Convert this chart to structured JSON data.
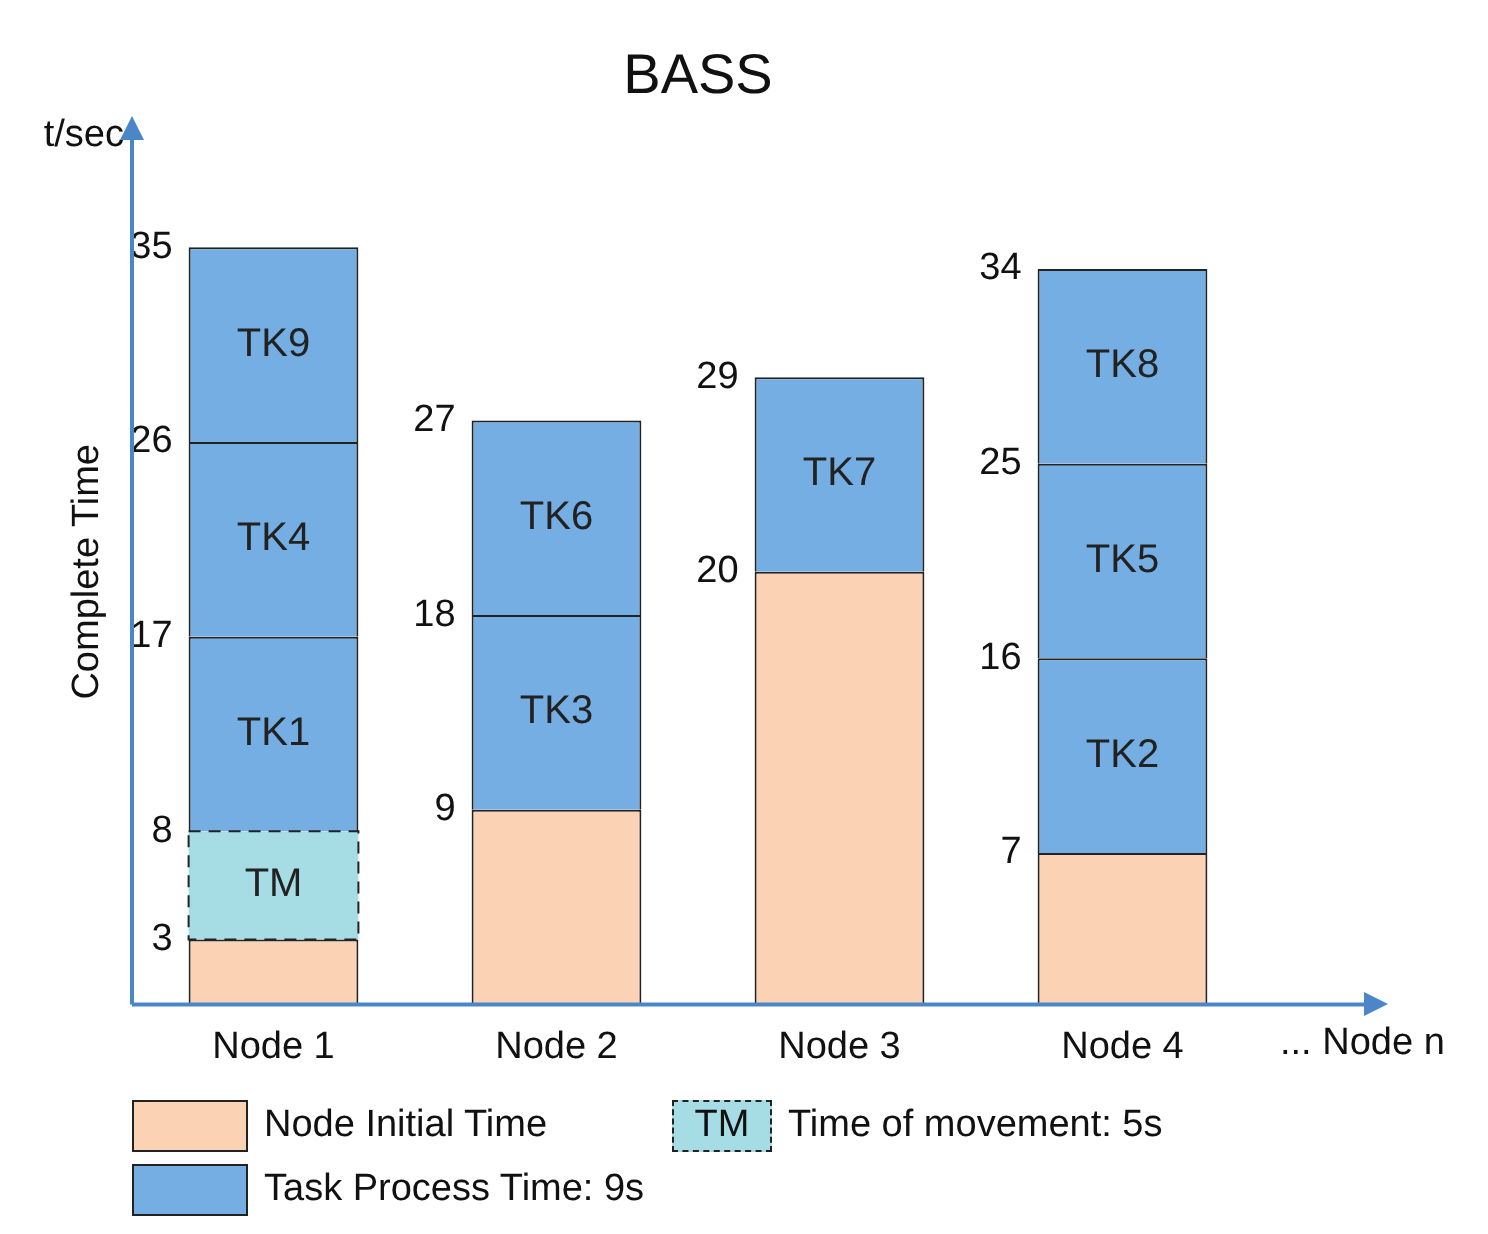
{
  "chart_data": {
    "type": "bar",
    "stacked": true,
    "title": "BASS",
    "ylabel": "Complete Time",
    "xlabel": "... Node n",
    "categories": [
      "Node 1",
      "Node 2",
      "Node 3",
      "Node 4"
    ],
    "ylim": [
      0,
      40
    ],
    "legend": "bottom",
    "series": [
      {
        "name": "Node Initial Time",
        "color": "#fbd3b4",
        "values": [
          3,
          9,
          20,
          7
        ]
      },
      {
        "name": "Time of movement: 5s",
        "color": "#a6dde4",
        "values": [
          5,
          null,
          null,
          null
        ],
        "line_style": "dashed",
        "value_labels": [
          "TM",
          null,
          null,
          null
        ]
      },
      {
        "name": "Task Process Time: 9s",
        "color": "#75aee3",
        "values": [
          9,
          9,
          9,
          9
        ],
        "value_labels": [
          "TK1",
          "TK3",
          "TK7",
          "TK2"
        ]
      },
      {
        "color": "#75aee3",
        "values": [
          9,
          9,
          null,
          9
        ],
        "value_labels": [
          "TK4",
          "TK6",
          null,
          "TK5"
        ]
      },
      {
        "color": "#75aee3",
        "values": [
          9,
          null,
          null,
          9
        ],
        "value_labels": [
          "TK9",
          null,
          null,
          "TK8"
        ]
      }
    ],
    "annotations": [
      "t/sec",
      {
        "text": "3",
        "x": "Node 1",
        "y": 3
      },
      {
        "text": "8",
        "x": "Node 1",
        "y": 8
      },
      {
        "text": "17",
        "x": "Node 1",
        "y": 17
      },
      {
        "text": "26",
        "x": "Node 1",
        "y": 26
      },
      {
        "text": "35",
        "x": "Node 1",
        "y": 35
      },
      {
        "text": "9",
        "x": "Node 2",
        "y": 9
      },
      {
        "text": "18",
        "x": "Node 2",
        "y": 18
      },
      {
        "text": "27",
        "x": "Node 2",
        "y": 27
      },
      {
        "text": "20",
        "x": "Node 3",
        "y": 20
      },
      {
        "text": "29",
        "x": "Node 3",
        "y": 29
      },
      {
        "text": "7",
        "x": "Node 4",
        "y": 7
      },
      {
        "text": "16",
        "x": "Node 4",
        "y": 16
      },
      {
        "text": "25",
        "x": "Node 4",
        "y": 25
      },
      {
        "text": "34",
        "x": "Node 4",
        "y": 34
      }
    ]
  }
}
